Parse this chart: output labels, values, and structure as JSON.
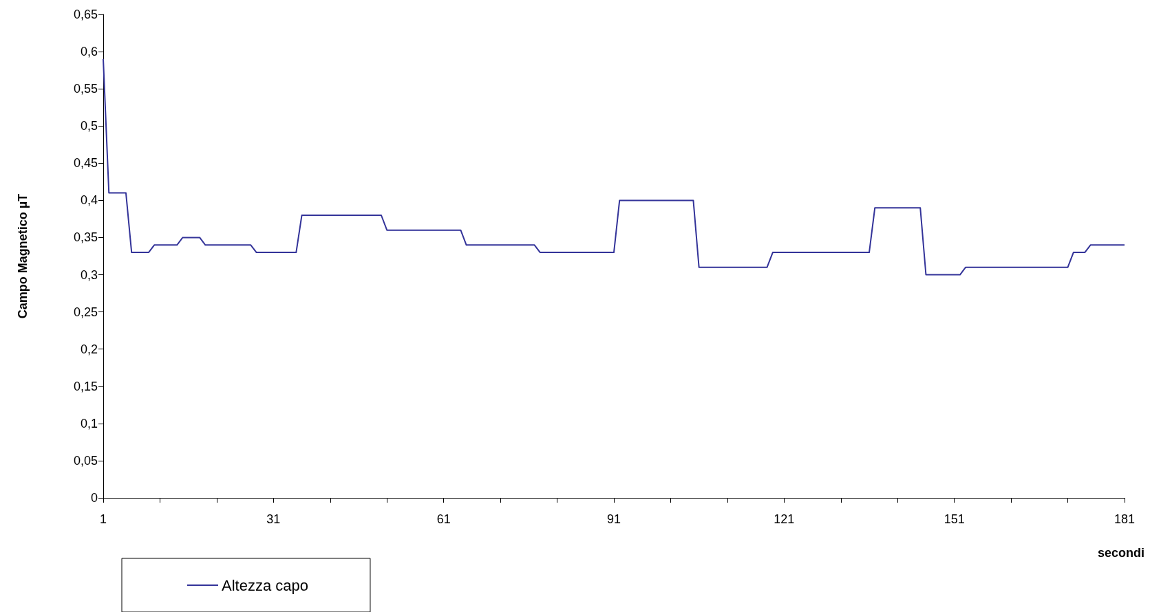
{
  "chart_data": {
    "type": "line",
    "xlabel": "secondi",
    "ylabel": "Campo Magnetico µT",
    "x": [
      1,
      2,
      5,
      6,
      9,
      10,
      14,
      15,
      18,
      19,
      27,
      28,
      35,
      36,
      50,
      51,
      64,
      65,
      77,
      78,
      91,
      92,
      105,
      106,
      118,
      119,
      136,
      137,
      145,
      146,
      152,
      153,
      171,
      172,
      174,
      175,
      181
    ],
    "series": [
      {
        "name": "Altezza capo",
        "color": "#333399",
        "values": [
          0.59,
          0.41,
          0.41,
          0.33,
          0.33,
          0.34,
          0.34,
          0.35,
          0.35,
          0.34,
          0.34,
          0.33,
          0.33,
          0.38,
          0.38,
          0.36,
          0.36,
          0.34,
          0.34,
          0.33,
          0.33,
          0.4,
          0.4,
          0.31,
          0.31,
          0.33,
          0.33,
          0.39,
          0.39,
          0.3,
          0.3,
          0.31,
          0.31,
          0.33,
          0.33,
          0.34,
          0.34
        ]
      }
    ],
    "xlim": [
      1,
      181
    ],
    "xticks": [
      1,
      {
        "value": 11,
        "label": null
      },
      {
        "value": 21,
        "label": null
      },
      31,
      {
        "value": 41,
        "label": null
      },
      {
        "value": 51,
        "label": null
      },
      61,
      {
        "value": 71,
        "label": null
      },
      {
        "value": 81,
        "label": null
      },
      91,
      {
        "value": 101,
        "label": null
      },
      {
        "value": 111,
        "label": null
      },
      121,
      {
        "value": 131,
        "label": null
      },
      {
        "value": 141,
        "label": null
      },
      151,
      {
        "value": 161,
        "label": null
      },
      {
        "value": 171,
        "label": null
      },
      181
    ],
    "ylim": [
      0,
      0.65
    ],
    "yticks": [
      {
        "value": 0,
        "label": "0"
      },
      {
        "value": 0.05,
        "label": "0,05"
      },
      {
        "value": 0.1,
        "label": "0,1"
      },
      {
        "value": 0.15,
        "label": "0,15"
      },
      {
        "value": 0.2,
        "label": "0,2"
      },
      {
        "value": 0.25,
        "label": "0,25"
      },
      {
        "value": 0.3,
        "label": "0,3"
      },
      {
        "value": 0.35,
        "label": "0,35"
      },
      {
        "value": 0.4,
        "label": "0,4"
      },
      {
        "value": 0.45,
        "label": "0,45"
      },
      {
        "value": 0.5,
        "label": "0,5"
      },
      {
        "value": 0.55,
        "label": "0,55"
      },
      {
        "value": 0.6,
        "label": "0,6"
      },
      {
        "value": 0.65,
        "label": "0,65"
      }
    ],
    "legend": "bottom left",
    "marker": "none",
    "grid": false
  }
}
